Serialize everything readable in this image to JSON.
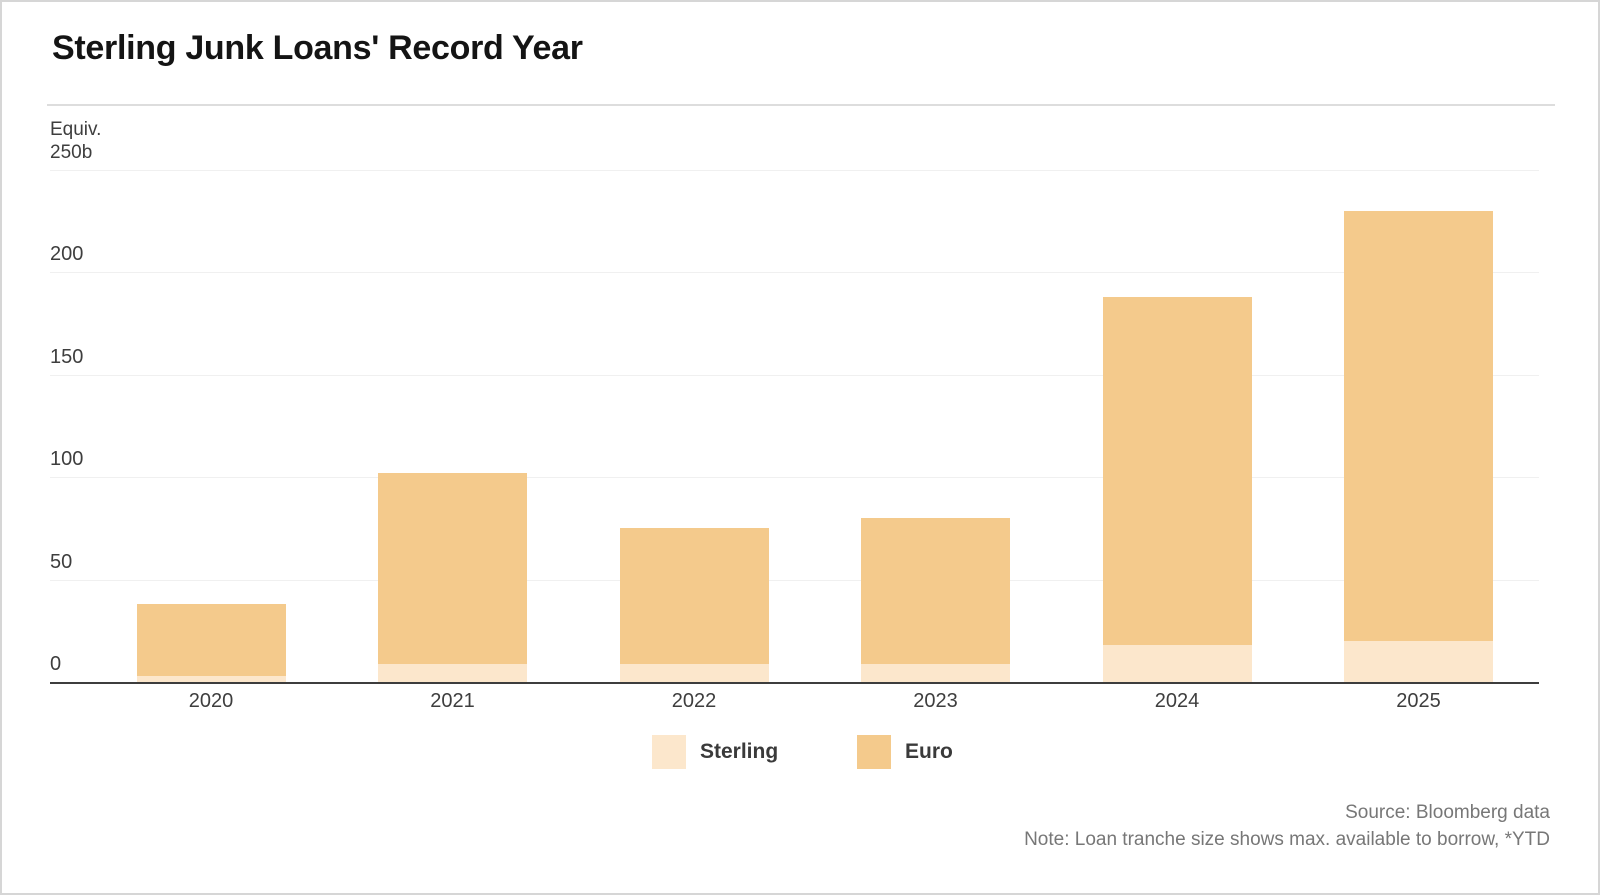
{
  "header": {
    "title": "Sterling Junk Loans' Record Year"
  },
  "y_axis": {
    "unit_line1": "Equiv.",
    "unit_line2": "250b"
  },
  "footer": {
    "source": "Source: Bloomberg data",
    "note": "Note: Loan tranche size shows max. available to borrow, *YTD"
  },
  "colors": {
    "sterling": "#FCE7CC",
    "euro": "#F4CA8C",
    "axis_line": "#3D3D3D",
    "gridline": "#F0F0F0",
    "divider": "#DDDDDD",
    "title_text": "#141414",
    "tick_text": "#3E3E3E",
    "legend_text": "#3A3A3A",
    "source_text": "#777777"
  },
  "chart_data": {
    "type": "bar",
    "stacked": true,
    "title": "Sterling Junk Loans' Record Year",
    "categories": [
      "2020",
      "2021",
      "2022",
      "2023",
      "2024",
      "2025"
    ],
    "series": [
      {
        "name": "Sterling",
        "color": "#FCE7CC",
        "values": [
          3,
          9,
          9,
          9,
          18,
          20
        ]
      },
      {
        "name": "Euro",
        "color": "#F4CA8C",
        "values": [
          35,
          93,
          66,
          71,
          170,
          210
        ]
      }
    ],
    "totals": [
      38,
      102,
      75,
      80,
      188,
      230
    ],
    "xlabel": "",
    "ylabel": "Equiv. 250b",
    "yticks": [
      0,
      50,
      100,
      150,
      200,
      250
    ],
    "ytick_labels": [
      "0",
      "50",
      "100",
      "150",
      "200",
      "250b"
    ],
    "ylim": [
      0,
      250
    ],
    "grid": true,
    "legend_position": "bottom"
  }
}
